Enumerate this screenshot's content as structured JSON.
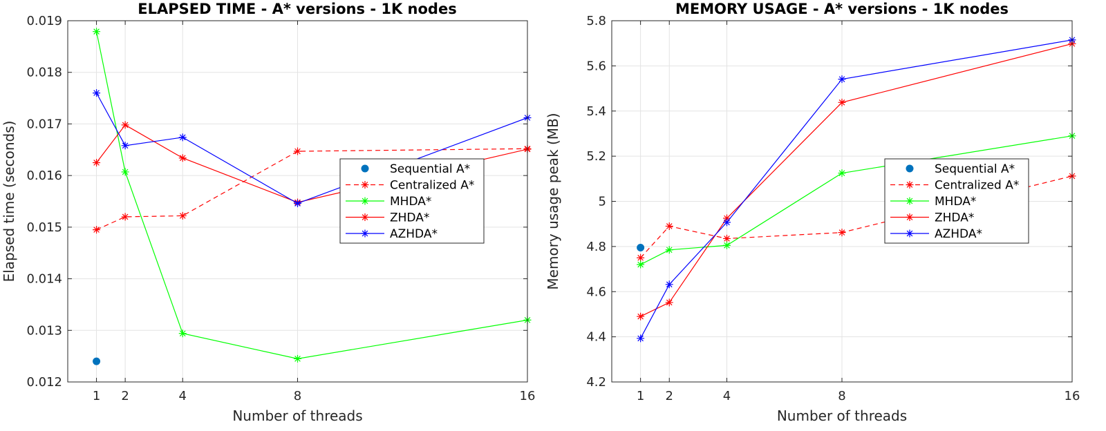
{
  "chart_data": [
    {
      "type": "line",
      "title": "ELAPSED TIME - A* versions - 1K nodes",
      "xlabel": "Number of threads",
      "ylabel": "Elapsed time (seconds)",
      "xlim": [
        0,
        16
      ],
      "ylim": [
        0.012,
        0.019
      ],
      "xticks": [
        1,
        2,
        4,
        8,
        16
      ],
      "yticks": [
        0.012,
        0.013,
        0.014,
        0.015,
        0.016,
        0.017,
        0.018,
        0.019
      ],
      "ytick_labels": [
        "0.012",
        "0.013",
        "0.014",
        "0.015",
        "0.016",
        "0.017",
        "0.018",
        "0.019"
      ],
      "grid": true,
      "legend_position": "middle-right",
      "series": [
        {
          "name": "Sequential A*",
          "color": "#0072bd",
          "style": "dot",
          "x": [
            1
          ],
          "y": [
            0.0124
          ]
        },
        {
          "name": "Centralized A*",
          "color": "#ff0000",
          "style": "dashed",
          "x": [
            1,
            2,
            4,
            8,
            16
          ],
          "y": [
            0.01495,
            0.0152,
            0.01522,
            0.01647,
            0.01652
          ]
        },
        {
          "name": "MHDA*",
          "color": "#00ff00",
          "style": "solid",
          "x": [
            1,
            2,
            4,
            8,
            16
          ],
          "y": [
            0.01879,
            0.01607,
            0.01294,
            0.01245,
            0.0132
          ]
        },
        {
          "name": "ZHDA*",
          "color": "#ff0000",
          "style": "solid",
          "x": [
            1,
            2,
            4,
            8,
            16
          ],
          "y": [
            0.01625,
            0.01698,
            0.01634,
            0.01548,
            0.01651
          ]
        },
        {
          "name": "AZHDA*",
          "color": "#0000ff",
          "style": "solid",
          "x": [
            1,
            2,
            4,
            8,
            16
          ],
          "y": [
            0.0176,
            0.01658,
            0.01674,
            0.01546,
            0.01712
          ]
        }
      ]
    },
    {
      "type": "line",
      "title": "MEMORY USAGE - A* versions - 1K nodes",
      "xlabel": "Number of threads",
      "ylabel": "Memory usage peak (MB)",
      "xlim": [
        0,
        16
      ],
      "ylim": [
        4.2,
        5.8
      ],
      "xticks": [
        1,
        2,
        4,
        8,
        16
      ],
      "yticks": [
        4.2,
        4.4,
        4.6,
        4.8,
        5.0,
        5.2,
        5.4,
        5.6,
        5.8
      ],
      "ytick_labels": [
        "4.2",
        "4.4",
        "4.6",
        "4.8",
        "5",
        "5.2",
        "5.4",
        "5.6",
        "5.8"
      ],
      "grid": true,
      "legend_position": "middle-right",
      "series": [
        {
          "name": "Sequential A*",
          "color": "#0072bd",
          "style": "dot",
          "x": [
            1
          ],
          "y": [
            4.795
          ]
        },
        {
          "name": "Centralized A*",
          "color": "#ff0000",
          "style": "dashed",
          "x": [
            1,
            2,
            4,
            8,
            16
          ],
          "y": [
            4.75,
            4.89,
            4.835,
            4.862,
            5.112
          ]
        },
        {
          "name": "MHDA*",
          "color": "#00ff00",
          "style": "solid",
          "x": [
            1,
            2,
            4,
            8,
            16
          ],
          "y": [
            4.72,
            4.785,
            4.805,
            5.125,
            5.29
          ]
        },
        {
          "name": "ZHDA*",
          "color": "#ff0000",
          "style": "solid",
          "x": [
            1,
            2,
            4,
            8,
            16
          ],
          "y": [
            4.49,
            4.552,
            4.925,
            5.438,
            5.698
          ]
        },
        {
          "name": "AZHDA*",
          "color": "#0000ff",
          "style": "solid",
          "x": [
            1,
            2,
            4,
            8,
            16
          ],
          "y": [
            4.393,
            4.632,
            4.907,
            5.541,
            5.715
          ]
        }
      ]
    }
  ]
}
